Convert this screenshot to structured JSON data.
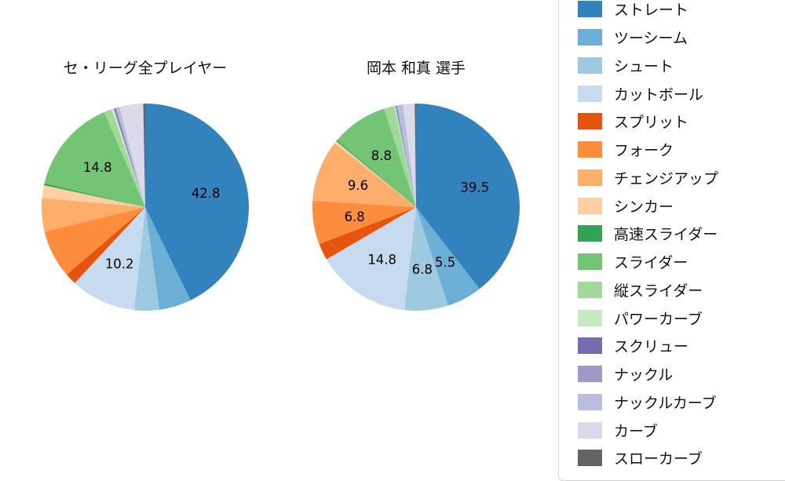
{
  "charts": {
    "left_title": "セ・リーグ全プレイヤー",
    "right_title": "岡本 和真 選手"
  },
  "chart_data": [
    {
      "type": "pie",
      "title": "セ・リーグ全プレイヤー",
      "start_angle": "top",
      "direction": "clockwise",
      "label_radius_fraction": 0.6,
      "categories": [
        "ストレート",
        "ツーシーム",
        "シュート",
        "カットボール",
        "スプリット",
        "フォーク",
        "チェンジアップ",
        "シンカー",
        "高速スライダー",
        "スライダー",
        "縦スライダー",
        "パワーカーブ",
        "スクリュー",
        "ナックル",
        "ナックルカーブ",
        "カーブ",
        "スローカーブ"
      ],
      "values": [
        42.8,
        5.0,
        3.9,
        10.2,
        1.8,
        7.5,
        5.2,
        2.0,
        0.3,
        14.8,
        1.2,
        0.4,
        0.2,
        0.2,
        0.5,
        3.7,
        0.3
      ],
      "shown_labels": [
        "42.8",
        "",
        "",
        "10.2",
        "",
        "",
        "",
        "",
        "",
        "14.8",
        "",
        "",
        "",
        "",
        "",
        "",
        ""
      ],
      "colors": [
        "#3182bd",
        "#6baed6",
        "#9ecae1",
        "#c6dbef",
        "#e6550d",
        "#fd8d3c",
        "#fdae6b",
        "#fdd0a2",
        "#31a354",
        "#74c476",
        "#a1d99b",
        "#c7e9c0",
        "#756bb1",
        "#9e9ac8",
        "#bcbddc",
        "#dadaeb",
        "#636363"
      ]
    },
    {
      "type": "pie",
      "title": "岡本 和真 選手",
      "start_angle": "top",
      "direction": "clockwise",
      "label_radius_fraction": 0.6,
      "categories": [
        "ストレート",
        "ツーシーム",
        "シュート",
        "カットボール",
        "スプリット",
        "フォーク",
        "チェンジアップ",
        "シンカー",
        "高速スライダー",
        "スライダー",
        "縦スライダー",
        "パワーカーブ",
        "スクリュー",
        "ナックル",
        "ナックルカーブ",
        "カーブ",
        "スローカーブ"
      ],
      "values": [
        39.5,
        5.5,
        6.8,
        14.8,
        2.6,
        6.8,
        9.6,
        0.4,
        0.2,
        8.8,
        1.6,
        0.2,
        0.1,
        0.2,
        0.9,
        1.8,
        0.2
      ],
      "shown_labels": [
        "39.5",
        "5.5",
        "6.8",
        "14.8",
        "",
        "6.8",
        "9.6",
        "",
        "",
        "8.8",
        "",
        "",
        "",
        "",
        "",
        "",
        ""
      ],
      "colors": [
        "#3182bd",
        "#6baed6",
        "#9ecae1",
        "#c6dbef",
        "#e6550d",
        "#fd8d3c",
        "#fdae6b",
        "#fdd0a2",
        "#31a354",
        "#74c476",
        "#a1d99b",
        "#c7e9c0",
        "#756bb1",
        "#9e9ac8",
        "#bcbddc",
        "#dadaeb",
        "#636363"
      ]
    }
  ],
  "legend": {
    "position": "right",
    "items": [
      {
        "label": "ストレート",
        "color": "#3182bd"
      },
      {
        "label": "ツーシーム",
        "color": "#6baed6"
      },
      {
        "label": "シュート",
        "color": "#9ecae1"
      },
      {
        "label": "カットボール",
        "color": "#c6dbef"
      },
      {
        "label": "スプリット",
        "color": "#e6550d"
      },
      {
        "label": "フォーク",
        "color": "#fd8d3c"
      },
      {
        "label": "チェンジアップ",
        "color": "#fdae6b"
      },
      {
        "label": "シンカー",
        "color": "#fdd0a2"
      },
      {
        "label": "高速スライダー",
        "color": "#31a354"
      },
      {
        "label": "スライダー",
        "color": "#74c476"
      },
      {
        "label": "縦スライダー",
        "color": "#a1d99b"
      },
      {
        "label": "パワーカーブ",
        "color": "#c7e9c0"
      },
      {
        "label": "スクリュー",
        "color": "#756bb1"
      },
      {
        "label": "ナックル",
        "color": "#9e9ac8"
      },
      {
        "label": "ナックルカーブ",
        "color": "#bcbddc"
      },
      {
        "label": "カーブ",
        "color": "#dadaeb"
      },
      {
        "label": "スローカーブ",
        "color": "#636363"
      }
    ]
  }
}
